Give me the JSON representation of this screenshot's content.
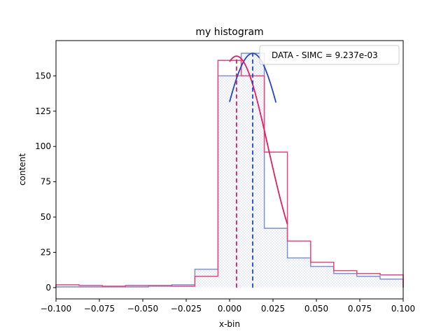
{
  "chart_data": {
    "type": "histogram",
    "title": "my histogram",
    "xlabel": "x-bin",
    "ylabel": "content",
    "xlim": [
      -0.1,
      0.1
    ],
    "ylim": [
      -8,
      175
    ],
    "xticks": [
      -0.1,
      -0.075,
      -0.05,
      -0.025,
      0.0,
      0.025,
      0.05,
      0.075,
      0.1
    ],
    "xtick_labels": [
      "−0.100",
      "−0.075",
      "−0.050",
      "−0.025",
      "0.000",
      "0.025",
      "0.050",
      "0.075",
      "0.100"
    ],
    "yticks": [
      0,
      25,
      50,
      75,
      100,
      125,
      150
    ],
    "ytick_labels": [
      "0",
      "25",
      "50",
      "75",
      "100",
      "125",
      "150"
    ],
    "grid": false,
    "legend": {
      "placement": "top-right",
      "entries": [
        "DATA - SIMC = 9.237e-03"
      ]
    },
    "bin_edges": [
      -0.1,
      -0.0867,
      -0.0733,
      -0.06,
      -0.0467,
      -0.0333,
      -0.02,
      -0.0067,
      0.0067,
      0.02,
      0.0333,
      0.0467,
      0.06,
      0.0733,
      0.0867,
      0.1
    ],
    "series": [
      {
        "color": "#7b8fd6",
        "style": "filled-hatched",
        "values": [
          0.5,
          0.5,
          0.5,
          0.5,
          1,
          2,
          13,
          150,
          166,
          42,
          21,
          15,
          10,
          8,
          6
        ]
      },
      {
        "color": "#e8457a",
        "style": "step",
        "values": [
          2,
          1.5,
          1,
          1.5,
          1.5,
          1,
          8,
          161,
          150,
          96,
          33,
          18,
          12,
          10,
          9
        ]
      }
    ],
    "fits": [
      {
        "color": "#1f45c9",
        "x_range": [
          0.0,
          0.0267
        ],
        "mean": 0.0133,
        "peak": 166,
        "sigma": 0.0195
      },
      {
        "color": "#e01f63",
        "x_range": [
          0.0,
          0.0333
        ],
        "mean": 0.004,
        "peak": 164,
        "sigma": 0.0182
      }
    ],
    "mean_lines": [
      {
        "color": "#e01f63",
        "x": 0.004
      },
      {
        "color": "#1f45c9",
        "x": 0.0133
      }
    ]
  }
}
